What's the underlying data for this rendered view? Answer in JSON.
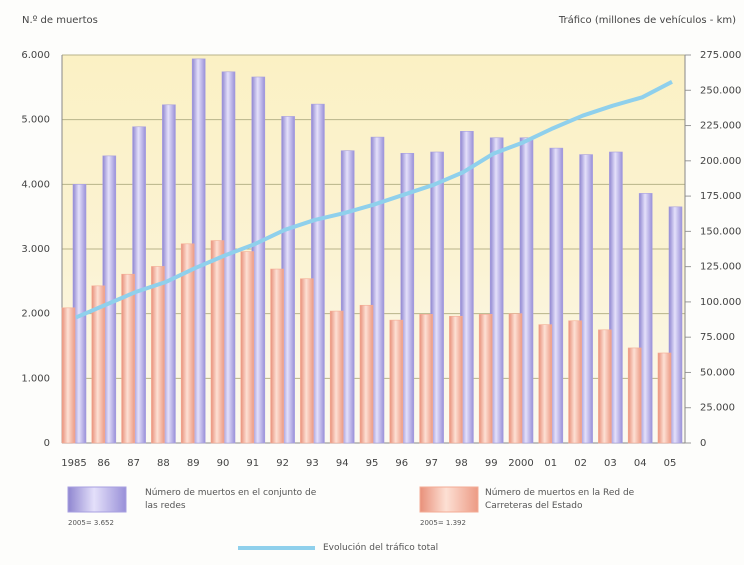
{
  "chart_data": {
    "type": "bar",
    "y_label": "N.º de muertos",
    "y2_label": "Tráfico (millones de vehículos - km)",
    "categories": [
      "1985",
      "86",
      "87",
      "88",
      "89",
      "90",
      "91",
      "92",
      "93",
      "94",
      "95",
      "96",
      "97",
      "98",
      "99",
      "2000",
      "01",
      "02",
      "03",
      "04",
      "05"
    ],
    "series": [
      {
        "name": "Número de muertos en el conjunto de las redes",
        "color": "#a79fe0",
        "values": [
          4000,
          4440,
          4890,
          5230,
          5940,
          5740,
          5660,
          5050,
          5240,
          4520,
          4730,
          4480,
          4500,
          4820,
          4720,
          4720,
          4560,
          4460,
          4500,
          3860,
          3652
        ]
      },
      {
        "name": "Número de muertos en la Red de Carreteras del Estado",
        "color": "#f4ab94",
        "values": [
          2090,
          2430,
          2610,
          2730,
          3080,
          3130,
          2960,
          2690,
          2540,
          2040,
          2130,
          1900,
          1990,
          1960,
          1990,
          2000,
          1830,
          1890,
          1750,
          1470,
          1392
        ]
      },
      {
        "name": "Evolución del tráfico total",
        "color": "#8fd0ec",
        "type": "line",
        "axis": "y2",
        "values": [
          89000,
          98000,
          107000,
          114000,
          124000,
          133000,
          141000,
          151000,
          158000,
          163000,
          169000,
          176000,
          183000,
          192000,
          205000,
          213000,
          223000,
          232000,
          239000,
          245000,
          256000
        ]
      }
    ],
    "annotations": [
      "2005= 3.652",
      "2005= 1.392"
    ],
    "ylim": [
      0,
      6000
    ],
    "yticks": [
      0,
      {
        "value": 1000,
        "label": "1.000"
      },
      {
        "value": 2000,
        "label": "2.000"
      },
      {
        "value": 3000,
        "label": "3.000"
      },
      {
        "value": 4000,
        "label": "4.000"
      },
      {
        "value": 5000,
        "label": "5.000"
      },
      {
        "value": 6000,
        "label": "6.000"
      }
    ],
    "y2lim": [
      0,
      275000
    ],
    "y2ticks": [
      0,
      {
        "value": 25000,
        "label": "25.000"
      },
      {
        "value": 50000,
        "label": "50.000"
      },
      {
        "value": 75000,
        "label": "75.000"
      },
      {
        "value": 100000,
        "label": "100.000"
      },
      {
        "value": 125000,
        "label": "125.000"
      },
      {
        "value": 150000,
        "label": "150.000"
      },
      {
        "value": 175000,
        "label": "175.000"
      },
      {
        "value": 200000,
        "label": "200.000"
      },
      {
        "value": 225000,
        "label": "225.000"
      },
      {
        "value": 250000,
        "label": "250.000"
      },
      {
        "value": 275000,
        "label": "275.000"
      }
    ],
    "grid": true
  }
}
